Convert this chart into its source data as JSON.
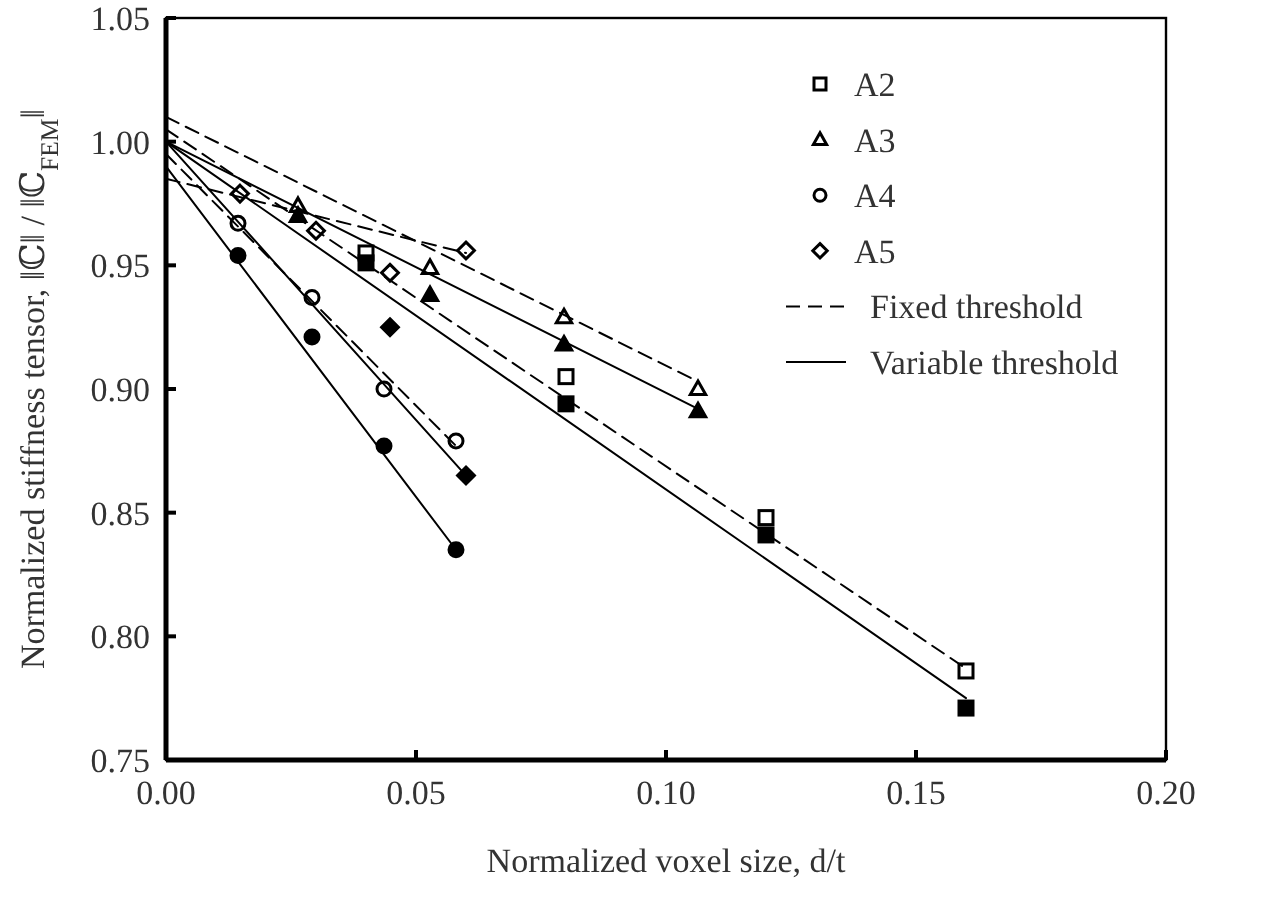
{
  "chart_data": {
    "type": "scatter",
    "xlabel": "Normalized voxel size, d/t",
    "ylabel": "Normalized stiffness tensor, ‖ℂ‖ / ‖ℂ$_{FEM}$‖",
    "xlim": [
      0,
      0.2
    ],
    "ylim": [
      0.75,
      1.05
    ],
    "xticks": [
      {
        "value": 0,
        "label": "0.00"
      },
      {
        "value": 0.05,
        "label": "0.05"
      },
      {
        "value": 0.1,
        "label": "0.10"
      },
      {
        "value": 0.15,
        "label": "0.15"
      },
      {
        "value": 0.2,
        "label": "0.20"
      }
    ],
    "yticks": [
      {
        "value": 0.75,
        "label": "0.75"
      },
      {
        "value": 0.8,
        "label": "0.80"
      },
      {
        "value": 0.85,
        "label": "0.85"
      },
      {
        "value": 0.9,
        "label": "0.90"
      },
      {
        "value": 0.95,
        "label": "0.95"
      },
      {
        "value": 1,
        "label": "1.00"
      },
      {
        "value": 1.05,
        "label": "1.05"
      }
    ],
    "grid": false,
    "legend": "top right",
    "series": [
      {
        "name": "A2",
        "marker": "square",
        "color": "#ffffff",
        "x": [
          0.04,
          0.08,
          0.12,
          0.16
        ],
        "values": [
          0.955,
          0.905,
          0.848,
          0.786
        ]
      },
      {
        "name": "A3",
        "marker": "triangle",
        "color": "#ffffff",
        "x": [
          0.0264,
          0.0528,
          0.0796,
          0.1064
        ],
        "values": [
          0.974,
          0.949,
          0.929,
          0.9
        ]
      },
      {
        "name": "A4",
        "marker": "circle",
        "color": "#ffffff",
        "x": [
          0.0144,
          0.0292,
          0.0436,
          0.058
        ],
        "values": [
          0.967,
          0.937,
          0.9,
          0.879
        ]
      },
      {
        "name": "A5",
        "marker": "diamond",
        "color": "#ffffff",
        "x": [
          0.0148,
          0.03,
          0.0448,
          0.06
        ],
        "values": [
          0.979,
          0.964,
          0.947,
          0.956
        ]
      },
      {
        "marker": "square",
        "color": "#000000",
        "x": [
          0.04,
          0.08,
          0.12,
          0.16
        ],
        "values": [
          0.951,
          0.894,
          0.841,
          0.771
        ]
      },
      {
        "marker": "triangle",
        "color": "#000000",
        "x": [
          0.0264,
          0.0528,
          0.0796,
          0.1064
        ],
        "values": [
          0.97,
          0.938,
          0.918,
          0.891
        ]
      },
      {
        "marker": "circle",
        "color": "#000000",
        "x": [
          0.0144,
          0.0292,
          0.0436,
          0.058
        ],
        "values": [
          0.954,
          0.921,
          0.877,
          0.835
        ]
      },
      {
        "marker": "diamond",
        "color": "#000000",
        "x": [
          0.0448,
          0.06
        ],
        "values": [
          0.925,
          0.865
        ]
      },
      {
        "name": "Fixed threshold",
        "type": "line",
        "line_style": "dashed",
        "marker": "none",
        "color": "#000000",
        "x": [
          0,
          0.16
        ],
        "values": [
          1.005,
          0.787
        ]
      },
      {
        "type": "line",
        "line_style": "dashed",
        "marker": "none",
        "color": "#000000",
        "x": [
          0,
          0.1064
        ],
        "values": [
          1.01,
          0.903
        ]
      },
      {
        "type": "line",
        "line_style": "dashed",
        "marker": "none",
        "color": "#000000",
        "x": [
          0,
          0.058
        ],
        "values": [
          0.995,
          0.877
        ]
      },
      {
        "type": "line",
        "line_style": "dashed",
        "marker": "none",
        "color": "#000000",
        "x": [
          0,
          0.06
        ],
        "values": [
          0.985,
          0.955
        ]
      },
      {
        "name": "Variable threshold",
        "type": "line",
        "line_style": "solid",
        "marker": "none",
        "color": "#000000",
        "x": [
          0,
          0.16
        ],
        "values": [
          1,
          0.775
        ]
      },
      {
        "type": "line",
        "line_style": "solid",
        "marker": "none",
        "color": "#000000",
        "x": [
          0,
          0.1064
        ],
        "values": [
          1,
          0.892
        ]
      },
      {
        "type": "line",
        "line_style": "solid",
        "marker": "none",
        "color": "#000000",
        "x": [
          0,
          0.058
        ],
        "values": [
          0.99,
          0.835
        ]
      },
      {
        "type": "line",
        "line_style": "solid",
        "marker": "none",
        "color": "#000000",
        "x": [
          0,
          0.06
        ],
        "values": [
          1,
          0.865
        ]
      }
    ]
  }
}
